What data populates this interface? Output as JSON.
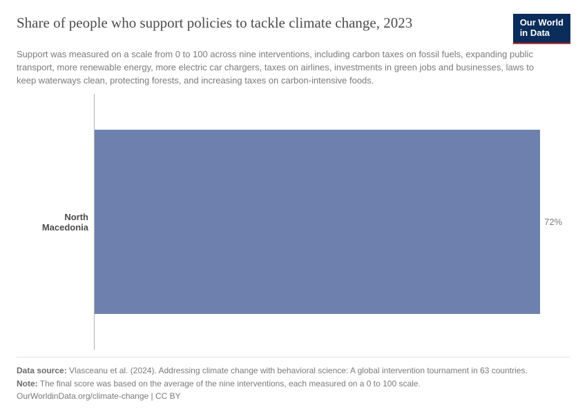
{
  "header": {
    "title": "Share of people who support policies to tackle climate change, 2023",
    "subtitle": "Support was measured on a scale from 0 to 100 across nine interventions, including carbon taxes on fossil fuels, expanding public transport, more renewable energy, more electric car chargers, taxes on airlines, investments in green jobs and businesses, laws to keep waterways clean, protecting forests, and increasing taxes on carbon-intensive foods.",
    "logo_line1": "Our World",
    "logo_line2": "in Data"
  },
  "chart": {
    "type": "bar-horizontal",
    "x_min": 0,
    "x_max": 76,
    "bar_color": "#6e80ae",
    "axis_color": "#b0b0b0",
    "background_color": "#ffffff",
    "label_fontsize": 13,
    "label_color": "#4b4b4b",
    "value_color": "#7a7a7a",
    "bar_top_pct": 14,
    "bar_height_pct": 72,
    "series": [
      {
        "label": "North Macedonia",
        "value": 72,
        "display": "72%"
      }
    ]
  },
  "footer": {
    "source_label": "Data source:",
    "source_text": "Vlasceanu et al. (2024). Addressing climate change with behavioral science: A global intervention tournament in 63 countries.",
    "note_label": "Note:",
    "note_text": "The final score was based on the average of the nine interventions, each measured on a 0 to 100 scale.",
    "link_text": "OurWorldinData.org/climate-change",
    "license_text": "CC BY"
  },
  "styling": {
    "title_font": "Georgia, serif",
    "title_fontsize": 21,
    "title_color": "#4b4b4b",
    "subtitle_fontsize": 13,
    "subtitle_color": "#7a7a7a",
    "footer_fontsize": 12,
    "footer_color": "#7a7a7a",
    "logo_bg": "#0a2d5b",
    "logo_underline": "#c0352d",
    "divider_color": "#e2e2e2"
  }
}
